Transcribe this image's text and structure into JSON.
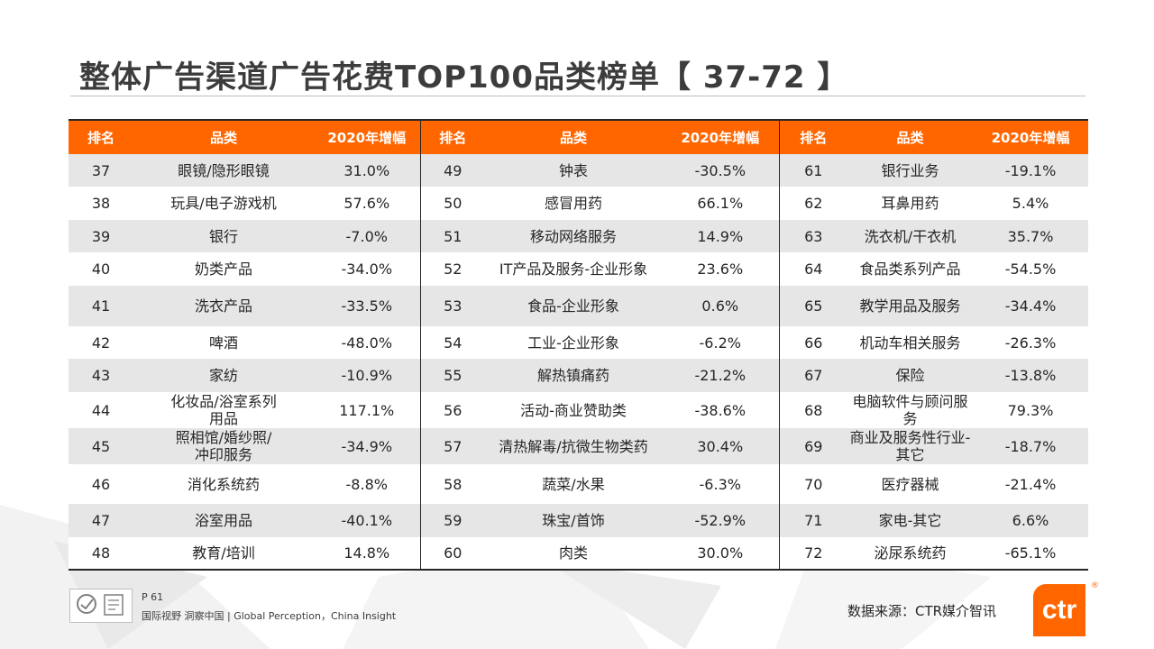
{
  "title": "整体广告渠道广告花费TOP100品类榜单【 37-72 】",
  "table": {
    "headers": [
      "排名",
      "品类",
      "2020年增幅",
      "排名",
      "品类",
      "2020年增幅",
      "排名",
      "品类",
      "2020年增幅"
    ],
    "rows": [
      [
        "37",
        "眼镜/隐形眼镜",
        "31.0%",
        "49",
        "钟表",
        "-30.5%",
        "61",
        "银行业务",
        "-19.1%"
      ],
      [
        "38",
        "玩具/电子游戏机",
        "57.6%",
        "50",
        "感冒用药",
        "66.1%",
        "62",
        "耳鼻用药",
        "5.4%"
      ],
      [
        "39",
        "银行",
        "-7.0%",
        "51",
        "移动网络服务",
        "14.9%",
        "63",
        "洗衣机/干衣机",
        "35.7%"
      ],
      [
        "40",
        "奶类产品",
        "-34.0%",
        "52",
        "IT产品及服务-企业形象",
        "23.6%",
        "64",
        "食品类系列产品",
        "-54.5%"
      ],
      [
        "41",
        "洗衣产品",
        "-33.5%",
        "53",
        "食品-企业形象",
        "0.6%",
        "65",
        "教学用品及服务",
        "-34.4%"
      ],
      [
        "42",
        "啤酒",
        "-48.0%",
        "54",
        "工业-企业形象",
        "-6.2%",
        "66",
        "机动车相关服务",
        "-26.3%"
      ],
      [
        "43",
        "家纺",
        "-10.9%",
        "55",
        "解热镇痛药",
        "-21.2%",
        "67",
        "保险",
        "-13.8%"
      ],
      [
        "44",
        "化妆品/浴室系列\n用品",
        "117.1%",
        "56",
        "活动-商业赞助类",
        "-38.6%",
        "68",
        "电脑软件与顾问服\n务",
        "79.3%"
      ],
      [
        "45",
        "照相馆/婚纱照/\n冲印服务",
        "-34.9%",
        "57",
        "清热解毒/抗微生物类药",
        "30.4%",
        "69",
        "商业及服务性行业-\n其它",
        "-18.7%"
      ],
      [
        "46",
        "消化系统药",
        "-8.8%",
        "58",
        "蔬菜/水果",
        "-6.3%",
        "70",
        "医疗器械",
        "-21.4%"
      ],
      [
        "47",
        "浴室用品",
        "-40.1%",
        "59",
        "珠宝/首饰",
        "-52.9%",
        "71",
        "家电-其它",
        "6.6%"
      ],
      [
        "48",
        "教育/培训",
        "14.8%",
        "60",
        "肉类",
        "30.0%",
        "72",
        "泌尿系统药",
        "-65.1%"
      ]
    ]
  },
  "footer": {
    "page": "P 61",
    "tagline": "国际视野  洞察中国 | Global Perception，China Insight",
    "source": "数据来源：CTR媒介智讯",
    "logo_text": "ctr",
    "logo_mark": "®"
  },
  "colors": {
    "accent": "#ff6600",
    "stripe": "#e6e6e6",
    "title": "#3c3c3c"
  }
}
